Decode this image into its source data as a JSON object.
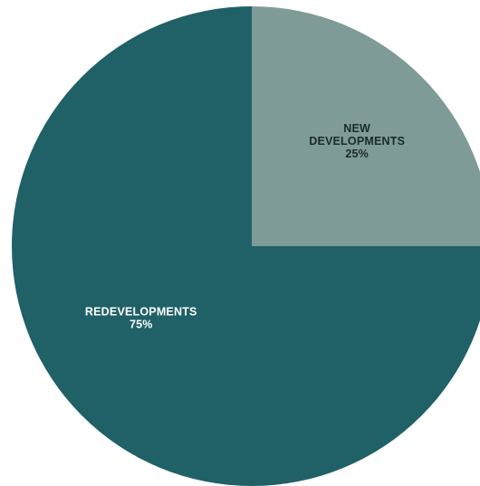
{
  "chart_data": {
    "type": "pie",
    "slices": [
      {
        "name": "NEW DEVELOPMENTS",
        "label_lines": [
          "NEW",
          "DEVELOPMENTS"
        ],
        "value": 25,
        "value_label": "25%",
        "color": "#7e9b97",
        "text_color": "#1b2b2b"
      },
      {
        "name": "REDEVELOPMENTS",
        "label_lines": [
          "REDEVELOPMENTS"
        ],
        "value": 75,
        "value_label": "75%",
        "color": "#1f6167",
        "text_color": "#ffffff"
      }
    ],
    "start_angle_deg": 0,
    "direction": "clockwise",
    "legend": "none"
  }
}
